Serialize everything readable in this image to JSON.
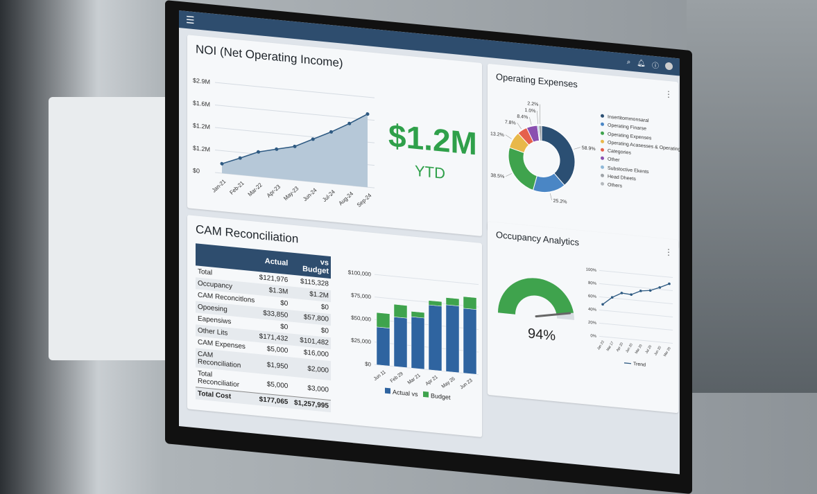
{
  "topbar": {
    "menu_icon": "hamburger-icon",
    "icons": [
      "search-icon",
      "notification-icon",
      "info-icon",
      "avatar"
    ]
  },
  "noi": {
    "title": "NOI (Net Operating Income)",
    "kpi_value": "$1.2M",
    "kpi_label": "YTD"
  },
  "opex": {
    "title": "Operating Expenses"
  },
  "cam": {
    "title": "CAM Reconciliation",
    "columns": [
      "",
      "Actual",
      "vs Budget"
    ],
    "rows": [
      [
        "Total",
        "$121,976",
        "$115,328"
      ],
      [
        "Occupancy",
        "$1.3M",
        "$1.2M"
      ],
      [
        "CAM Reconcitlons",
        "$0",
        "$0"
      ],
      [
        "Opoesing",
        "$33,850",
        "$57,800"
      ],
      [
        "Eapensiws",
        "$0",
        "$0"
      ],
      [
        "Other Lits",
        "$171,432",
        "$101,482"
      ],
      [
        "CAM Expenses",
        "$5,000",
        "$16,000"
      ],
      [
        "CAM Reconciliation",
        "$1,950",
        "$2,000"
      ],
      [
        "Total Reconciliatior",
        "$5,000",
        "$3,000"
      ]
    ],
    "total": [
      "Total Cost",
      "$177,065",
      "$1,257,995"
    ]
  },
  "occupancy": {
    "title": "Occupancy Analytics",
    "gauge_value": "94%"
  },
  "chart_data": [
    {
      "type": "area",
      "categories": [
        "Jan-21",
        "Feb-21",
        "Mar-22",
        "Apr-23",
        "May-23",
        "Jun-24",
        "Jul-24",
        "Aug-24",
        "Sep-24"
      ],
      "y_tick_labels": [
        "$0",
        "$1.2M",
        "$1.2M",
        "$1.6M",
        "$2.9M"
      ],
      "ylim": [
        0,
        4
      ],
      "values": [
        0.42,
        0.75,
        1.1,
        1.3,
        1.5,
        1.9,
        2.3,
        2.75,
        3.25
      ],
      "color": "#2e5a82",
      "fill": "#b6c8d8",
      "grid": true
    },
    {
      "type": "pie",
      "donut": true,
      "labels": [
        "Insertitommonsaral",
        "Operating Finarse",
        "Operating Expenses",
        "Operating Acasesses & Operating Asses...",
        "Categories",
        "Other",
        "Substoctive Ekents",
        "Head Dheets",
        "Others"
      ],
      "values": [
        58.9,
        25.2,
        38.5,
        13.2,
        7.8,
        8.4,
        1.0,
        2.2,
        null
      ],
      "value_labels": [
        "58.9%",
        "25.2%",
        "38.5%",
        "13.2%",
        "7.8%",
        "8.4%",
        "1.0%",
        "2.2%",
        ""
      ],
      "colors": [
        "#2b4f73",
        "#4a86c5",
        "#3fa34d",
        "#e8b84a",
        "#e5604c",
        "#8a4fb0",
        "#8fb8d8",
        "#9ea3a8",
        "#b4b8bc"
      ],
      "legend": "right"
    },
    {
      "type": "bar",
      "stacked": true,
      "categories": [
        "Jun 11",
        "Feb 29",
        "Mar 21",
        "Apr 21",
        "May 26",
        "Jun 23"
      ],
      "series": [
        {
          "name": "Actual vs",
          "values": [
            42000,
            55000,
            57000,
            72000,
            74000,
            72000
          ],
          "color": "#2f64a0"
        },
        {
          "name": "Budget",
          "values": [
            16000,
            14000,
            6000,
            5000,
            8000,
            13000
          ],
          "color": "#3fa34d"
        }
      ],
      "y_tick_labels": [
        "$0",
        "$25,000",
        "$50,000",
        "$75,000",
        "$100,000"
      ],
      "ylim": [
        0,
        100000
      ],
      "legend": "bottom",
      "grid": true
    },
    {
      "type": "gauge",
      "value": 94,
      "color": "#3fa34d"
    },
    {
      "type": "line",
      "categories": [
        "Jan 23",
        "Mar 17",
        "Apr 20",
        "Jun 20",
        "Mar 20",
        "Jul 20",
        "Jun 20",
        "Mar 20"
      ],
      "series": [
        {
          "name": "Trend",
          "values": [
            49,
            61,
            69,
            68,
            75,
            77,
            83,
            90
          ],
          "color": "#2e5a82"
        }
      ],
      "y_tick_labels": [
        "0%",
        "20%",
        "40%",
        "60%",
        "80%",
        "100%"
      ],
      "ylim": [
        0,
        100
      ],
      "legend": "bottom",
      "grid": true
    }
  ]
}
